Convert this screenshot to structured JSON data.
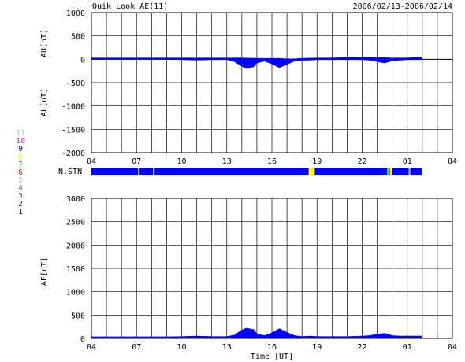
{
  "header": {
    "title": "Quik Look AE(11)",
    "date_range": "2006/02/13-2006/02/14"
  },
  "labels": {
    "au_axis": "AU[nT]",
    "al_axis": "AL[nT]",
    "ae_axis": "AE[nT]",
    "stations_row": "N.STN",
    "xlabel": "Time [UT]"
  },
  "legend": {
    "entries": [
      {
        "label": "11",
        "color": "#00ffff"
      },
      {
        "label": "10",
        "color": "#ff00ff"
      },
      {
        "label": "9",
        "color": "#0000ff"
      },
      {
        "label": "8",
        "color": "#ffff00"
      },
      {
        "label": "7",
        "color": "#00ff00"
      },
      {
        "label": "6",
        "color": "#ff0000"
      },
      {
        "label": "5",
        "color": "#c0c0c0"
      },
      {
        "label": "4",
        "color": "#808080"
      },
      {
        "label": "3",
        "color": "#008080"
      },
      {
        "label": "2",
        "color": "#800080"
      },
      {
        "label": "1",
        "color": "#000080"
      }
    ]
  },
  "chart_data": [
    {
      "type": "area",
      "name": "AU/AL",
      "x_unit": "hours since 04 UT",
      "xlim": [
        0,
        24
      ],
      "x_tick_labels": [
        "04",
        "07",
        "10",
        "13",
        "16",
        "19",
        "22",
        "01",
        "04"
      ],
      "ylim": [
        -2000,
        1000
      ],
      "y_ticks": [
        1000,
        500,
        0,
        -500,
        -1000,
        -1500,
        -2000
      ],
      "ylabel_upper": "AU[nT]",
      "ylabel_lower": "AL[nT]",
      "data_end_hour": 22.0,
      "series": [
        {
          "name": "AU",
          "color": "#0000ff",
          "x": [
            0,
            2,
            4,
            6,
            8,
            9,
            10,
            11,
            12,
            12.5,
            13,
            13.5,
            14,
            15,
            16,
            17,
            18,
            19,
            20,
            20.5,
            21,
            21.5,
            22
          ],
          "y": [
            30,
            30,
            30,
            30,
            30,
            30,
            30,
            20,
            20,
            20,
            10,
            10,
            20,
            30,
            30,
            40,
            40,
            40,
            30,
            30,
            30,
            40,
            40
          ]
        },
        {
          "name": "AL",
          "color": "#0000ff",
          "x": [
            0,
            1,
            2,
            3,
            4,
            5,
            6,
            7,
            8,
            9,
            9.5,
            10,
            10.3,
            10.8,
            11,
            11.5,
            12,
            12.5,
            13,
            13.5,
            14,
            14.5,
            15,
            16,
            17,
            18,
            18.5,
            19,
            19.5,
            20,
            20.5,
            21,
            21.5,
            22
          ],
          "y": [
            -5,
            -5,
            -5,
            -5,
            -5,
            -5,
            -10,
            -20,
            -10,
            -10,
            -50,
            -150,
            -200,
            -160,
            -80,
            -40,
            -100,
            -180,
            -110,
            -40,
            -20,
            -20,
            -10,
            -10,
            -10,
            -10,
            -20,
            -50,
            -80,
            -30,
            -20,
            -10,
            -10,
            -10
          ]
        }
      ]
    },
    {
      "type": "heatmap",
      "name": "N.STN",
      "xlim": [
        0,
        24
      ],
      "segments": [
        {
          "start": 0,
          "end": 3.1,
          "stations": 9
        },
        {
          "start": 3.1,
          "end": 3.2,
          "stations": 5
        },
        {
          "start": 3.2,
          "end": 4.1,
          "stations": 9
        },
        {
          "start": 4.1,
          "end": 4.2,
          "stations": 5
        },
        {
          "start": 4.2,
          "end": 14.45,
          "stations": 9
        },
        {
          "start": 14.45,
          "end": 14.85,
          "stations": 8
        },
        {
          "start": 14.85,
          "end": 19.65,
          "stations": 9
        },
        {
          "start": 19.65,
          "end": 19.75,
          "stations": 7
        },
        {
          "start": 19.75,
          "end": 19.85,
          "stations": 6
        },
        {
          "start": 19.85,
          "end": 20.0,
          "stations": 8
        },
        {
          "start": 20.0,
          "end": 21.1,
          "stations": 9
        },
        {
          "start": 21.1,
          "end": 21.2,
          "stations": 5
        },
        {
          "start": 21.2,
          "end": 22.0,
          "stations": 9
        }
      ]
    },
    {
      "type": "area",
      "name": "AE",
      "x_unit": "hours since 04 UT",
      "xlim": [
        0,
        24
      ],
      "x_tick_labels": [
        "04",
        "07",
        "10",
        "13",
        "16",
        "19",
        "22",
        "01",
        "04"
      ],
      "ylim": [
        0,
        3000
      ],
      "y_ticks": [
        3000,
        2500,
        2000,
        1500,
        1000,
        500,
        0
      ],
      "ylabel": "AE[nT]",
      "xlabel": "Time [UT]",
      "data_end_hour": 22.0,
      "series": [
        {
          "name": "AE",
          "color": "#0000ff",
          "x": [
            0,
            1,
            2,
            3,
            4,
            5,
            6,
            7,
            8,
            9,
            9.5,
            10,
            10.3,
            10.8,
            11,
            11.5,
            12,
            12.5,
            13,
            13.5,
            14,
            14.5,
            15,
            16,
            17,
            18,
            18.5,
            19,
            19.5,
            20,
            20.5,
            21,
            21.5,
            22
          ],
          "y": [
            35,
            35,
            35,
            35,
            35,
            35,
            40,
            50,
            40,
            40,
            70,
            180,
            220,
            190,
            100,
            60,
            120,
            210,
            130,
            60,
            40,
            50,
            40,
            40,
            40,
            50,
            60,
            90,
            110,
            60,
            50,
            50,
            50,
            50
          ]
        }
      ]
    }
  ]
}
